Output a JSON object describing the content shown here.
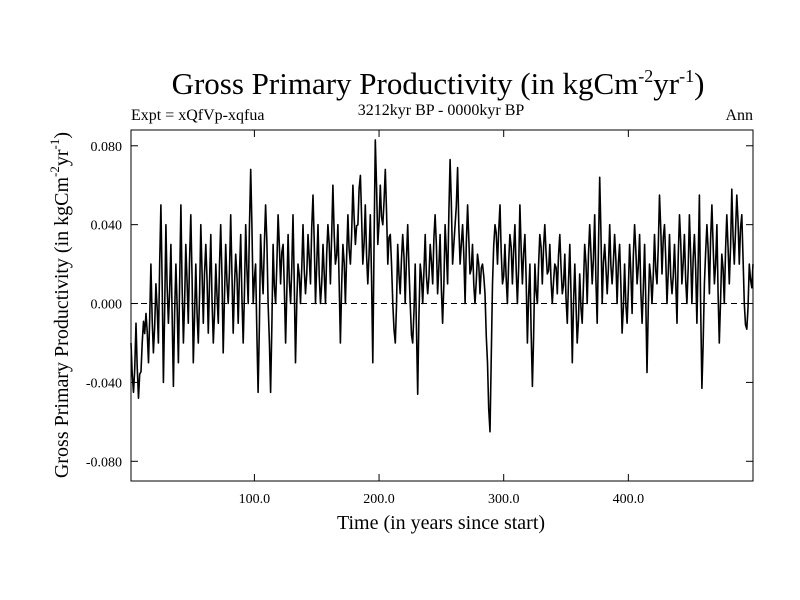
{
  "chart_data": {
    "type": "line",
    "title": "Gross Primary Productivity (in kgCm",
    "title_sup1": "-2",
    "title_mid": "yr",
    "title_sup2": "-1",
    "title_end": ")",
    "expt_label": "Expt = xQfVp-xqfua",
    "period_label": "3212kyr BP - 0000kyr BP",
    "season_label": "Ann",
    "xlabel": "Time (in years since start)",
    "ylabel": "Gross Primary Productivity (in kgCm",
    "ylabel_sup1": "-2",
    "ylabel_mid": "yr",
    "ylabel_sup2": "-1",
    "ylabel_end": ")",
    "xlim": [
      1,
      500
    ],
    "ylim": [
      -0.09,
      0.088
    ],
    "x_ticks": [
      100,
      200,
      300,
      400
    ],
    "x_tick_labels": [
      "100.0",
      "200.0",
      "300.0",
      "400.0"
    ],
    "y_ticks": [
      -0.08,
      -0.04,
      0.0,
      0.04,
      0.08
    ],
    "y_tick_labels": [
      "-0.080",
      "-0.040",
      "0.000",
      "0.040",
      "0.080"
    ],
    "reference_line": 0.0,
    "anchors": [
      [
        1,
        -0.02
      ],
      [
        3,
        -0.045
      ],
      [
        5,
        -0.01
      ],
      [
        7,
        -0.048
      ],
      [
        10,
        -0.02
      ],
      [
        13,
        -0.005
      ],
      [
        15,
        -0.03
      ],
      [
        17,
        0.02
      ],
      [
        19,
        -0.025
      ],
      [
        21,
        0.01
      ],
      [
        23,
        -0.02
      ],
      [
        25,
        0.05
      ],
      [
        27,
        -0.04
      ],
      [
        29,
        0.04
      ],
      [
        31,
        -0.01
      ],
      [
        33,
        0.03
      ],
      [
        35,
        -0.042
      ],
      [
        37,
        0.02
      ],
      [
        39,
        -0.03
      ],
      [
        41,
        0.05
      ],
      [
        43,
        -0.02
      ],
      [
        45,
        0.03
      ],
      [
        47,
        -0.01
      ],
      [
        49,
        0.045
      ],
      [
        51,
        -0.03
      ],
      [
        53,
        0.02
      ],
      [
        55,
        -0.02
      ],
      [
        57,
        0.04
      ],
      [
        59,
        -0.01
      ],
      [
        61,
        0.03
      ],
      [
        63,
        -0.015
      ],
      [
        65,
        0.035
      ],
      [
        67,
        -0.02
      ],
      [
        69,
        0.02
      ],
      [
        71,
        -0.01
      ],
      [
        73,
        0.04
      ],
      [
        75,
        -0.025
      ],
      [
        77,
        0.03
      ],
      [
        79,
        0.0
      ],
      [
        81,
        0.045
      ],
      [
        83,
        -0.015
      ],
      [
        85,
        0.025
      ],
      [
        87,
        -0.01
      ],
      [
        89,
        0.035
      ],
      [
        91,
        -0.02
      ],
      [
        93,
        0.04
      ],
      [
        95,
        0.0
      ],
      [
        97,
        0.068
      ],
      [
        99,
        0.0
      ],
      [
        101,
        0.02
      ],
      [
        103,
        -0.045
      ],
      [
        105,
        0.035
      ],
      [
        107,
        0.005
      ],
      [
        109,
        0.05
      ],
      [
        111,
        0.0
      ],
      [
        113,
        -0.045
      ],
      [
        115,
        0.03
      ],
      [
        117,
        0.0
      ],
      [
        119,
        0.045
      ],
      [
        121,
        0.01
      ],
      [
        123,
        0.03
      ],
      [
        125,
        -0.02
      ],
      [
        127,
        0.035
      ],
      [
        129,
        0.0
      ],
      [
        131,
        0.045
      ],
      [
        133,
        -0.03
      ],
      [
        135,
        0.02
      ],
      [
        137,
        0.0
      ],
      [
        139,
        0.04
      ],
      [
        141,
        0.005
      ],
      [
        143,
        0.035
      ],
      [
        145,
        0.01
      ],
      [
        147,
        0.055
      ],
      [
        149,
        0.0
      ],
      [
        151,
        0.04
      ],
      [
        153,
        0.0
      ],
      [
        155,
        0.03
      ],
      [
        157,
        0.0
      ],
      [
        159,
        0.04
      ],
      [
        161,
        0.01
      ],
      [
        163,
        0.06
      ],
      [
        165,
        0.02
      ],
      [
        167,
        0.04
      ],
      [
        169,
        -0.02
      ],
      [
        171,
        0.03
      ],
      [
        173,
        0.0
      ],
      [
        175,
        0.045
      ],
      [
        177,
        0.02
      ],
      [
        179,
        0.06
      ],
      [
        181,
        0.03
      ],
      [
        183,
        0.04
      ],
      [
        185,
        0.065
      ],
      [
        187,
        0.02
      ],
      [
        189,
        0.05
      ],
      [
        191,
        0.01
      ],
      [
        193,
        0.045
      ],
      [
        195,
        -0.03
      ],
      [
        197,
        0.083
      ],
      [
        199,
        0.03
      ],
      [
        201,
        0.06
      ],
      [
        203,
        0.04
      ],
      [
        205,
        0.068
      ],
      [
        207,
        0.02
      ],
      [
        209,
        0.035
      ],
      [
        211,
        0.0
      ],
      [
        213,
        -0.02
      ],
      [
        215,
        0.03
      ],
      [
        217,
        0.005
      ],
      [
        219,
        0.035
      ],
      [
        221,
        0.0
      ],
      [
        223,
        0.04
      ],
      [
        225,
        0.0
      ],
      [
        227,
        -0.02
      ],
      [
        229,
        0.02
      ],
      [
        231,
        -0.046
      ],
      [
        233,
        0.02
      ],
      [
        235,
        0.0
      ],
      [
        237,
        0.035
      ],
      [
        239,
        0.005
      ],
      [
        241,
        0.03
      ],
      [
        243,
        0.01
      ],
      [
        245,
        0.045
      ],
      [
        247,
        0.005
      ],
      [
        249,
        0.035
      ],
      [
        251,
        -0.01
      ],
      [
        253,
        0.04
      ],
      [
        255,
        0.01
      ],
      [
        257,
        0.073
      ],
      [
        259,
        0.02
      ],
      [
        261,
        0.04
      ],
      [
        263,
        0.069
      ],
      [
        265,
        0.02
      ],
      [
        267,
        0.04
      ],
      [
        269,
        0.0
      ],
      [
        271,
        0.05
      ],
      [
        273,
        0.015
      ],
      [
        275,
        0.03
      ],
      [
        277,
        0.0
      ],
      [
        279,
        0.025
      ],
      [
        281,
        0.005
      ],
      [
        283,
        0.02
      ],
      [
        285,
        0.005
      ],
      [
        287,
        -0.03
      ],
      [
        289,
        -0.065
      ],
      [
        291,
        0.01
      ],
      [
        293,
        0.04
      ],
      [
        295,
        0.02
      ],
      [
        297,
        0.05
      ],
      [
        299,
        0.01
      ],
      [
        301,
        0.03
      ],
      [
        303,
        0.0
      ],
      [
        305,
        0.035
      ],
      [
        307,
        0.01
      ],
      [
        309,
        0.04
      ],
      [
        311,
        0.0
      ],
      [
        313,
        0.05
      ],
      [
        315,
        0.01
      ],
      [
        317,
        0.035
      ],
      [
        319,
        -0.02
      ],
      [
        321,
        0.02
      ],
      [
        323,
        -0.042
      ],
      [
        325,
        0.02
      ],
      [
        327,
        0.0
      ],
      [
        329,
        0.035
      ],
      [
        331,
        0.01
      ],
      [
        333,
        0.04
      ],
      [
        335,
        0.015
      ],
      [
        337,
        0.03
      ],
      [
        339,
        0.0
      ],
      [
        341,
        0.02
      ],
      [
        343,
        0.005
      ],
      [
        345,
        0.035
      ],
      [
        347,
        0.005
      ],
      [
        349,
        0.025
      ],
      [
        351,
        -0.01
      ],
      [
        353,
        0.03
      ],
      [
        355,
        -0.03
      ],
      [
        357,
        0.02
      ],
      [
        359,
        -0.02
      ],
      [
        361,
        0.015
      ],
      [
        363,
        -0.01
      ],
      [
        365,
        0.03
      ],
      [
        367,
        0.0
      ],
      [
        369,
        0.04
      ],
      [
        371,
        0.01
      ],
      [
        373,
        0.045
      ],
      [
        375,
        -0.01
      ],
      [
        377,
        0.064
      ],
      [
        379,
        0.0
      ],
      [
        381,
        0.03
      ],
      [
        383,
        0.005
      ],
      [
        385,
        0.04
      ],
      [
        387,
        0.01
      ],
      [
        389,
        0.035
      ],
      [
        391,
        0.0
      ],
      [
        393,
        0.03
      ],
      [
        395,
        -0.015
      ],
      [
        397,
        0.02
      ],
      [
        399,
        -0.01
      ],
      [
        401,
        0.03
      ],
      [
        403,
        -0.005
      ],
      [
        405,
        0.04
      ],
      [
        407,
        0.01
      ],
      [
        409,
        0.035
      ],
      [
        411,
        -0.01
      ],
      [
        413,
        0.03
      ],
      [
        415,
        -0.035
      ],
      [
        417,
        0.02
      ],
      [
        419,
        0.0
      ],
      [
        421,
        0.035
      ],
      [
        423,
        0.01
      ],
      [
        425,
        0.055
      ],
      [
        427,
        0.015
      ],
      [
        429,
        0.04
      ],
      [
        431,
        0.0
      ],
      [
        433,
        0.035
      ],
      [
        435,
        0.005
      ],
      [
        437,
        0.03
      ],
      [
        439,
        -0.01
      ],
      [
        441,
        0.045
      ],
      [
        443,
        0.01
      ],
      [
        445,
        0.035
      ],
      [
        447,
        0.0
      ],
      [
        449,
        0.045
      ],
      [
        451,
        0.0
      ],
      [
        453,
        0.035
      ],
      [
        455,
        -0.01
      ],
      [
        457,
        0.055
      ],
      [
        459,
        -0.043
      ],
      [
        461,
        0.01
      ],
      [
        463,
        0.04
      ],
      [
        465,
        0.005
      ],
      [
        467,
        0.05
      ],
      [
        469,
        0.01
      ],
      [
        471,
        0.04
      ],
      [
        473,
        -0.02
      ],
      [
        475,
        0.025
      ],
      [
        477,
        0.0
      ],
      [
        479,
        0.045
      ],
      [
        481,
        0.01
      ],
      [
        483,
        0.058
      ],
      [
        485,
        0.02
      ],
      [
        487,
        0.055
      ],
      [
        489,
        0.02
      ],
      [
        491,
        0.045
      ],
      [
        493,
        0.0
      ],
      [
        495,
        -0.013
      ],
      [
        497,
        0.02
      ],
      [
        499,
        0.008
      ],
      [
        500,
        0.02
      ]
    ]
  }
}
